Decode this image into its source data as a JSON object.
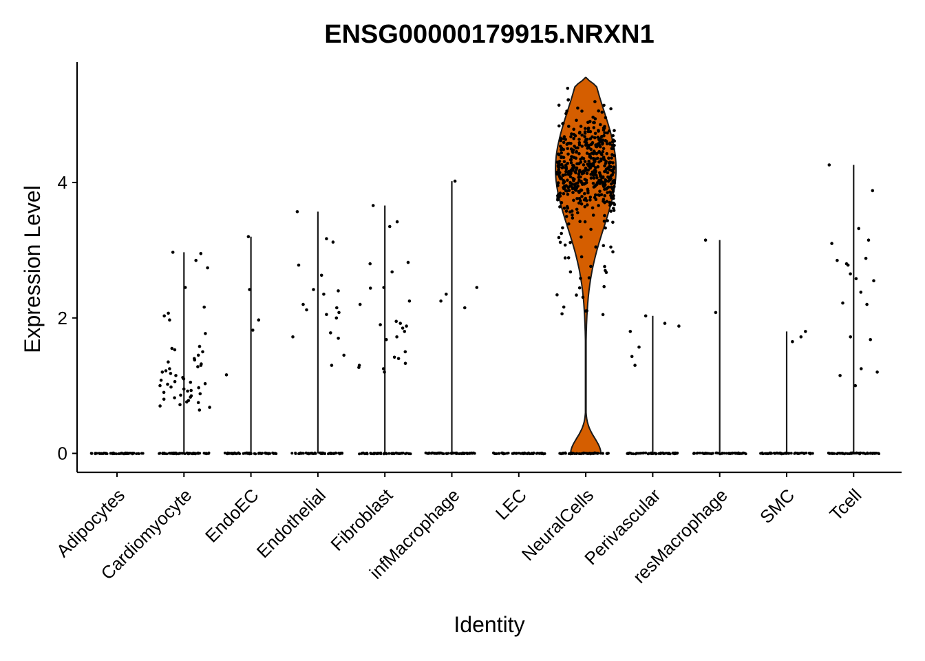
{
  "chart_data": {
    "type": "violin",
    "title": "ENSG00000179915.NRXN1",
    "xlabel": "Identity",
    "ylabel": "Expression Level",
    "ylim": [
      -0.28,
      5.78
    ],
    "y_ticks": [
      0,
      2,
      4
    ],
    "grid": false,
    "legend": "none",
    "colors": {
      "violin_fill": "#D55E00",
      "violin_stroke": "#1a1a1a",
      "points": "#000000",
      "axis": "#000000"
    },
    "categories": [
      "Adipocytes",
      "Cardiomyocyte",
      "EndoEC",
      "Endothelial",
      "Fibroblast",
      "infMacrophage",
      "LEC",
      "NeuralCells",
      "Perivascular",
      "resMacrophage",
      "SMC",
      "Tcell"
    ],
    "series": [
      {
        "max": 0.0,
        "nonzero": []
      },
      {
        "max": 2.97,
        "nonzero": [
          2.97,
          2.95,
          2.85,
          2.74,
          2.45,
          2.16,
          2.07,
          2.03,
          1.97,
          1.77,
          1.58,
          1.55,
          1.53,
          1.5,
          1.45,
          1.4,
          1.38,
          1.35,
          1.32,
          1.3,
          1.28,
          1.25,
          1.22,
          1.2,
          1.18,
          1.15,
          1.12,
          1.1,
          1.08,
          1.06,
          1.05,
          1.03,
          1.02,
          1.0,
          0.98,
          0.97,
          0.95,
          0.93,
          0.92,
          0.9,
          0.88,
          0.86,
          0.85,
          0.83,
          0.82,
          0.8,
          0.78,
          0.76,
          0.75,
          0.72,
          0.7,
          0.68,
          0.64
        ]
      },
      {
        "max": 3.2,
        "nonzero": [
          3.2,
          2.42,
          1.97,
          1.82,
          1.16
        ]
      },
      {
        "max": 3.57,
        "nonzero": [
          3.57,
          3.17,
          3.12,
          2.78,
          2.63,
          2.42,
          2.4,
          2.35,
          2.2,
          2.15,
          2.12,
          2.08,
          2.05,
          2.0,
          1.78,
          1.72,
          1.7,
          1.45,
          1.3
        ]
      },
      {
        "max": 3.66,
        "nonzero": [
          3.66,
          3.42,
          3.35,
          2.82,
          2.8,
          2.68,
          2.45,
          2.44,
          2.2,
          2.25,
          1.95,
          1.92,
          1.9,
          1.88,
          1.85,
          1.8,
          1.72,
          1.68,
          1.5,
          1.42,
          1.4,
          1.33,
          1.3,
          1.27,
          1.25,
          1.2
        ]
      },
      {
        "max": 4.02,
        "nonzero": [
          4.02,
          2.45,
          2.35,
          2.25,
          2.15
        ]
      },
      {
        "max": 0.0,
        "nonzero": []
      },
      {
        "max": 5.55,
        "mode": 4.2,
        "nonzero_count": 520
      },
      {
        "max": 2.03,
        "nonzero": [
          2.03,
          1.92,
          1.88,
          1.8,
          1.57,
          1.43,
          1.3
        ]
      },
      {
        "max": 3.15,
        "nonzero": [
          3.15,
          2.08
        ]
      },
      {
        "max": 1.8,
        "nonzero": [
          1.8,
          1.72,
          1.65
        ]
      },
      {
        "max": 4.26,
        "nonzero": [
          4.26,
          3.88,
          3.32,
          3.15,
          3.1,
          2.88,
          2.85,
          2.8,
          2.78,
          2.65,
          2.58,
          2.55,
          2.38,
          2.22,
          2.2,
          1.72,
          1.68,
          1.25,
          1.2,
          1.15,
          1.0
        ]
      }
    ]
  }
}
